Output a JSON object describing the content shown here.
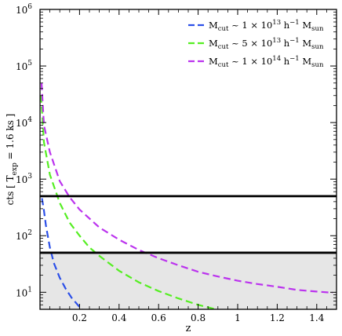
{
  "chart_data": {
    "type": "line",
    "xlabel": "z",
    "ylabel": "cts  [ T",
    "ylabel_sub": "exp",
    "ylabel_rest": " = 1.6 ks ]",
    "xlim": [
      0.0,
      1.5
    ],
    "ylim": [
      5,
      1000000
    ],
    "yscale": "log",
    "x_ticks": [
      {
        "value": 0.2,
        "label": "0.2"
      },
      {
        "value": 0.4,
        "label": "0.4"
      },
      {
        "value": 0.6,
        "label": "0.6"
      },
      {
        "value": 0.8,
        "label": "0.8"
      },
      {
        "value": 1.0,
        "label": "1"
      },
      {
        "value": 1.2,
        "label": "1.2"
      },
      {
        "value": 1.4,
        "label": "1.4"
      }
    ],
    "y_ticks": [
      {
        "value": 10,
        "base": "10",
        "exp": "1"
      },
      {
        "value": 100,
        "base": "10",
        "exp": "2"
      },
      {
        "value": 1000,
        "base": "10",
        "exp": "3"
      },
      {
        "value": 10000,
        "base": "10",
        "exp": "4"
      },
      {
        "value": 100000,
        "base": "10",
        "exp": "5"
      },
      {
        "value": 1000000,
        "base": "10",
        "exp": "6"
      }
    ],
    "legend_position": "top-right",
    "series": [
      {
        "legend_parts": [
          "M",
          "cut",
          " ~ 1 × 10",
          "13",
          " h",
          "−1",
          " M",
          "sun"
        ],
        "color": "#2b4fe8",
        "style": "dashed",
        "x": [
          0.01,
          0.02,
          0.03,
          0.05,
          0.07,
          0.1,
          0.13,
          0.16,
          0.2,
          0.23
        ],
        "y": [
          460,
          280,
          150,
          62,
          33,
          18,
          11.5,
          8,
          5.5,
          4.5
        ]
      },
      {
        "legend_parts": [
          "M",
          "cut",
          " ~ 5 × 10",
          "13",
          " h",
          "−1",
          " M",
          "sun"
        ],
        "color": "#55ee22",
        "style": "dashed",
        "x": [
          0.005,
          0.02,
          0.05,
          0.1,
          0.15,
          0.2,
          0.25,
          0.3,
          0.4,
          0.5,
          0.6,
          0.7,
          0.8,
          0.9
        ],
        "y": [
          30000,
          4500,
          1200,
          380,
          170,
          100,
          62,
          44,
          24,
          15,
          10.5,
          7.8,
          6,
          4.9
        ]
      },
      {
        "legend_parts": [
          "M",
          "cut",
          " ~ 1 × 10",
          "14",
          " h",
          "−1",
          " M",
          "sun"
        ],
        "color": "#bb33ee",
        "style": "dashed",
        "x": [
          0.008,
          0.02,
          0.05,
          0.1,
          0.15,
          0.2,
          0.3,
          0.4,
          0.5,
          0.6,
          0.7,
          0.8,
          0.9,
          1.0,
          1.1,
          1.2,
          1.3,
          1.4,
          1.48
        ],
        "y": [
          50000,
          9000,
          3000,
          920,
          480,
          290,
          140,
          85,
          56,
          40,
          30,
          23,
          19,
          16,
          14,
          12.5,
          11,
          10.3,
          9.8
        ]
      }
    ],
    "threshold_lines": [
      {
        "y": 500,
        "color": "#000000"
      },
      {
        "y": 50,
        "color": "#000000"
      }
    ],
    "shaded_region": {
      "y_min": 5,
      "y_max": 50,
      "color": "#e6e6e6"
    }
  }
}
